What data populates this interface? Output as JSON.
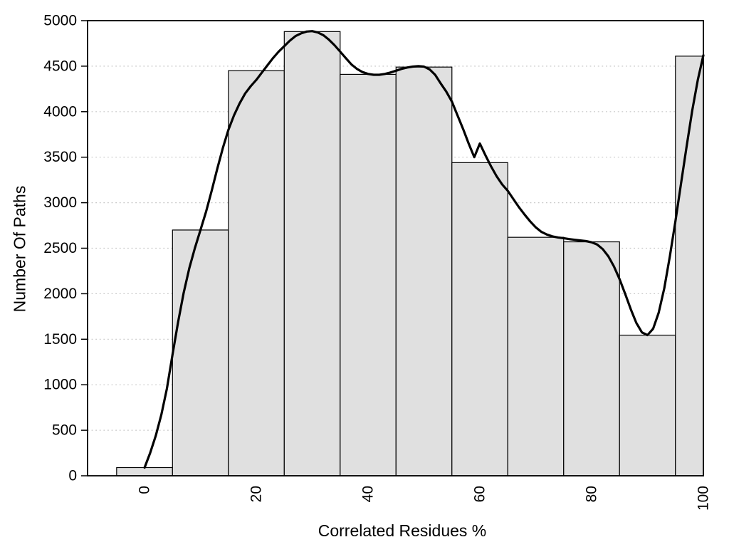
{
  "chart_data": {
    "type": "bar",
    "subtype": "histogram-with-density-curve",
    "title": "",
    "xlabel": "Correlated Residues %",
    "ylabel": "Number Of Paths",
    "xlim": [
      -10.2,
      100
    ],
    "ylim": [
      0,
      5000
    ],
    "x_ticks": [
      0,
      20,
      40,
      60,
      80,
      100
    ],
    "y_ticks": [
      0,
      500,
      1000,
      1500,
      2000,
      2500,
      3000,
      3500,
      4000,
      4500,
      5000
    ],
    "grid": "horizontal-dotted",
    "legend": "none",
    "bars": [
      {
        "x0": -5,
        "x1": 5,
        "value": 90
      },
      {
        "x0": 5,
        "x1": 15,
        "value": 2700
      },
      {
        "x0": 15,
        "x1": 25,
        "value": 4450
      },
      {
        "x0": 25,
        "x1": 35,
        "value": 4880
      },
      {
        "x0": 35,
        "x1": 45,
        "value": 4410
      },
      {
        "x0": 45,
        "x1": 55,
        "value": 4490
      },
      {
        "x0": 55,
        "x1": 65,
        "value": 3440
      },
      {
        "x0": 65,
        "x1": 75,
        "value": 2620
      },
      {
        "x0": 75,
        "x1": 85,
        "value": 2570
      },
      {
        "x0": 85,
        "x1": 95,
        "value": 1545
      },
      {
        "x0": 95,
        "x1": 100,
        "value": 4610
      }
    ],
    "series": [
      {
        "name": "density-curve",
        "points": [
          [
            0,
            90
          ],
          [
            1,
            250
          ],
          [
            2,
            440
          ],
          [
            3,
            670
          ],
          [
            4,
            960
          ],
          [
            5,
            1330
          ],
          [
            6,
            1690
          ],
          [
            7,
            2010
          ],
          [
            8,
            2280
          ],
          [
            9,
            2500
          ],
          [
            10,
            2700
          ],
          [
            11,
            2900
          ],
          [
            12,
            3130
          ],
          [
            13,
            3370
          ],
          [
            14,
            3600
          ],
          [
            15,
            3800
          ],
          [
            16,
            3960
          ],
          [
            17,
            4090
          ],
          [
            18,
            4200
          ],
          [
            19,
            4280
          ],
          [
            20,
            4350
          ],
          [
            21,
            4430
          ],
          [
            22,
            4510
          ],
          [
            23,
            4590
          ],
          [
            24,
            4660
          ],
          [
            25,
            4720
          ],
          [
            26,
            4780
          ],
          [
            27,
            4830
          ],
          [
            28,
            4860
          ],
          [
            29,
            4880
          ],
          [
            30,
            4885
          ],
          [
            31,
            4870
          ],
          [
            32,
            4840
          ],
          [
            33,
            4790
          ],
          [
            34,
            4730
          ],
          [
            35,
            4660
          ],
          [
            36,
            4590
          ],
          [
            37,
            4520
          ],
          [
            38,
            4470
          ],
          [
            39,
            4435
          ],
          [
            40,
            4415
          ],
          [
            41,
            4405
          ],
          [
            42,
            4405
          ],
          [
            43,
            4415
          ],
          [
            44,
            4430
          ],
          [
            45,
            4450
          ],
          [
            46,
            4470
          ],
          [
            47,
            4485
          ],
          [
            48,
            4495
          ],
          [
            49,
            4500
          ],
          [
            50,
            4495
          ],
          [
            51,
            4465
          ],
          [
            52,
            4405
          ],
          [
            53,
            4310
          ],
          [
            54,
            4220
          ],
          [
            55,
            4110
          ],
          [
            56,
            3960
          ],
          [
            57,
            3810
          ],
          [
            58,
            3650
          ],
          [
            59,
            3500
          ],
          [
            60,
            3650
          ],
          [
            61,
            3520
          ],
          [
            62,
            3400
          ],
          [
            63,
            3290
          ],
          [
            64,
            3200
          ],
          [
            65,
            3130
          ],
          [
            66,
            3040
          ],
          [
            67,
            2950
          ],
          [
            68,
            2870
          ],
          [
            69,
            2795
          ],
          [
            70,
            2730
          ],
          [
            71,
            2680
          ],
          [
            72,
            2650
          ],
          [
            73,
            2630
          ],
          [
            74,
            2618
          ],
          [
            75,
            2610
          ],
          [
            76,
            2600
          ],
          [
            77,
            2592
          ],
          [
            78,
            2585
          ],
          [
            79,
            2578
          ],
          [
            80,
            2565
          ],
          [
            81,
            2540
          ],
          [
            82,
            2490
          ],
          [
            83,
            2410
          ],
          [
            84,
            2300
          ],
          [
            85,
            2160
          ],
          [
            86,
            2000
          ],
          [
            87,
            1830
          ],
          [
            88,
            1680
          ],
          [
            89,
            1575
          ],
          [
            90,
            1545
          ],
          [
            91,
            1615
          ],
          [
            92,
            1790
          ],
          [
            93,
            2060
          ],
          [
            94,
            2410
          ],
          [
            95,
            2800
          ],
          [
            96,
            3210
          ],
          [
            97,
            3620
          ],
          [
            98,
            4010
          ],
          [
            99,
            4350
          ],
          [
            100,
            4620
          ]
        ]
      }
    ],
    "colors": {
      "background": "#ffffff",
      "bar_fill": "#e0e0e0",
      "bar_stroke": "#000000",
      "curve": "#000000",
      "grid": "#c6c6c6",
      "axis": "#000000",
      "text": "#000000"
    }
  }
}
